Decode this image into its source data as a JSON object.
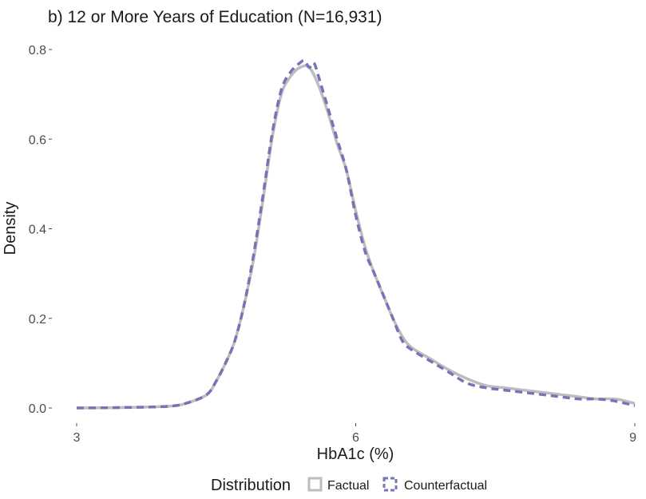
{
  "chart_data": {
    "type": "line",
    "title": "b) 12 or More Years of Education (N=16,931)",
    "xlabel": "HbA1c (%)",
    "ylabel": "Density",
    "xlim": [
      3,
      9
    ],
    "ylim": [
      0,
      0.8
    ],
    "x_ticks": [
      3,
      6,
      9
    ],
    "x_tick_labels": [
      "3",
      "6",
      "9"
    ],
    "y_ticks": [
      0.0,
      0.2,
      0.4,
      0.6,
      0.8
    ],
    "y_tick_labels": [
      "0.0",
      "0.2",
      "0.4",
      "0.6",
      "0.8"
    ],
    "grid": false,
    "legend": {
      "title": "Distribution",
      "position": "bottom",
      "entries": [
        "Factual",
        "Counterfactual"
      ]
    },
    "series": [
      {
        "name": "Factual",
        "color": "#bdbdbd",
        "style": "solid",
        "x": [
          3.0,
          3.5,
          4.0,
          4.2,
          4.4,
          4.5,
          4.6,
          4.7,
          4.8,
          4.9,
          5.0,
          5.1,
          5.2,
          5.3,
          5.4,
          5.5,
          5.6,
          5.7,
          5.8,
          5.9,
          6.0,
          6.1,
          6.2,
          6.3,
          6.4,
          6.5,
          6.6,
          6.8,
          7.0,
          7.2,
          7.4,
          7.6,
          7.8,
          8.0,
          8.2,
          8.4,
          8.6,
          8.8,
          9.0
        ],
        "y": [
          0.0,
          0.001,
          0.004,
          0.012,
          0.03,
          0.06,
          0.1,
          0.15,
          0.23,
          0.33,
          0.46,
          0.6,
          0.7,
          0.74,
          0.76,
          0.76,
          0.72,
          0.66,
          0.59,
          0.53,
          0.44,
          0.36,
          0.3,
          0.25,
          0.2,
          0.16,
          0.135,
          0.11,
          0.085,
          0.065,
          0.05,
          0.045,
          0.04,
          0.035,
          0.03,
          0.025,
          0.02,
          0.02,
          0.01
        ]
      },
      {
        "name": "Counterfactual",
        "color": "#7474b8",
        "style": "dashed",
        "x": [
          3.0,
          3.5,
          4.0,
          4.2,
          4.4,
          4.5,
          4.6,
          4.7,
          4.8,
          4.9,
          5.0,
          5.1,
          5.2,
          5.3,
          5.4,
          5.45,
          5.5,
          5.55,
          5.6,
          5.7,
          5.8,
          5.9,
          6.0,
          6.1,
          6.2,
          6.3,
          6.4,
          6.5,
          6.6,
          6.8,
          7.0,
          7.2,
          7.4,
          7.6,
          7.8,
          8.0,
          8.2,
          8.4,
          8.6,
          8.8,
          9.0
        ],
        "y": [
          0.0,
          0.001,
          0.004,
          0.012,
          0.03,
          0.06,
          0.1,
          0.15,
          0.23,
          0.34,
          0.47,
          0.61,
          0.71,
          0.75,
          0.77,
          0.775,
          0.76,
          0.77,
          0.74,
          0.67,
          0.6,
          0.53,
          0.43,
          0.35,
          0.3,
          0.25,
          0.2,
          0.15,
          0.13,
          0.105,
          0.08,
          0.055,
          0.045,
          0.04,
          0.035,
          0.03,
          0.025,
          0.02,
          0.02,
          0.015,
          0.005
        ]
      }
    ]
  }
}
